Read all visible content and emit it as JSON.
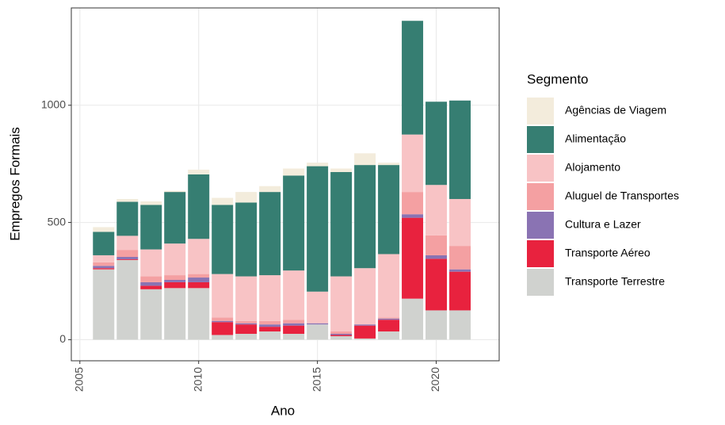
{
  "chart_data": {
    "type": "stacked-bar",
    "x_label": "Ano",
    "y_label": "Empregos Formais",
    "legend_title": "Segmento",
    "x": [
      2006,
      2007,
      2008,
      2009,
      2010,
      2011,
      2012,
      2013,
      2014,
      2015,
      2016,
      2017,
      2018,
      2019,
      2020,
      2021
    ],
    "xlim": [
      2004.64,
      2022.65
    ],
    "xticks": [
      2005,
      2010,
      2015,
      2020
    ],
    "ylim": [
      -90,
      1415
    ],
    "yticks": [
      0,
      500,
      1000
    ],
    "grid": true,
    "legend": "right",
    "series": [
      {
        "name": "Agências de Viagem",
        "color": "#f3ecdc",
        "values": [
          20,
          12,
          15,
          5,
          20,
          30,
          45,
          25,
          30,
          15,
          15,
          50,
          10,
          0,
          0,
          0
        ]
      },
      {
        "name": "Alimentação",
        "color": "#367e72",
        "values": [
          100,
          145,
          190,
          220,
          275,
          295,
          315,
          355,
          405,
          535,
          445,
          440,
          380,
          485,
          355,
          420
        ]
      },
      {
        "name": "Alojamento",
        "color": "#f8c3c5",
        "values": [
          30,
          60,
          115,
          135,
          150,
          185,
          190,
          195,
          210,
          135,
          235,
          240,
          270,
          245,
          215,
          200
        ]
      },
      {
        "name": "Aluguel de Transportes",
        "color": "#f4a0a2",
        "values": [
          15,
          30,
          25,
          20,
          15,
          15,
          10,
          15,
          15,
          0,
          10,
          0,
          5,
          95,
          85,
          100
        ]
      },
      {
        "name": "Cultura e Lazer",
        "color": "#8a73b3",
        "values": [
          10,
          10,
          15,
          10,
          20,
          5,
          5,
          10,
          10,
          5,
          5,
          5,
          5,
          15,
          15,
          10
        ]
      },
      {
        "name": "Transporte Aéreo",
        "color": "#e8223e",
        "values": [
          5,
          3,
          15,
          25,
          25,
          55,
          40,
          20,
          35,
          0,
          5,
          55,
          50,
          345,
          220,
          165
        ]
      },
      {
        "name": "Transporte Terrestre",
        "color": "#d0d2cf",
        "values": [
          300,
          340,
          215,
          220,
          220,
          20,
          25,
          35,
          25,
          65,
          15,
          5,
          35,
          175,
          125,
          125
        ]
      }
    ]
  }
}
